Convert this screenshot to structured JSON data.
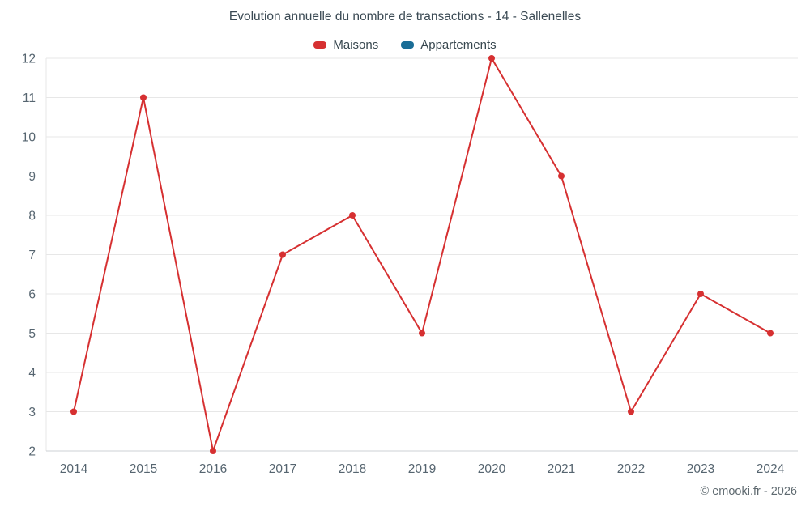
{
  "chart": {
    "title": "Evolution annuelle du nombre de transactions - 14 - Sallenelles",
    "watermark": "© emooki.fr - 2026"
  },
  "chart_data": {
    "type": "line",
    "title": "Evolution annuelle du nombre de transactions - 14 - Sallenelles",
    "categories": [
      "2014",
      "2015",
      "2016",
      "2017",
      "2018",
      "2019",
      "2020",
      "2021",
      "2022",
      "2023",
      "2024"
    ],
    "series": [
      {
        "name": "Maisons",
        "color": "#d63031",
        "values": [
          3,
          11,
          2,
          7,
          8,
          5,
          12,
          9,
          3,
          6,
          5
        ]
      },
      {
        "name": "Appartements",
        "color": "#1a6d96",
        "values": []
      }
    ],
    "xlabel": "",
    "ylabel": "",
    "ylim": [
      2,
      12
    ],
    "yticks": [
      2,
      3,
      4,
      5,
      6,
      7,
      8,
      9,
      10,
      11,
      12
    ],
    "grid": true,
    "legend_position": "top",
    "colors": {
      "grid_line": "#e7e7e7",
      "axis_line": "#ccd2d6",
      "tick_label": "#566570",
      "title_text": "#3b4a54"
    }
  }
}
